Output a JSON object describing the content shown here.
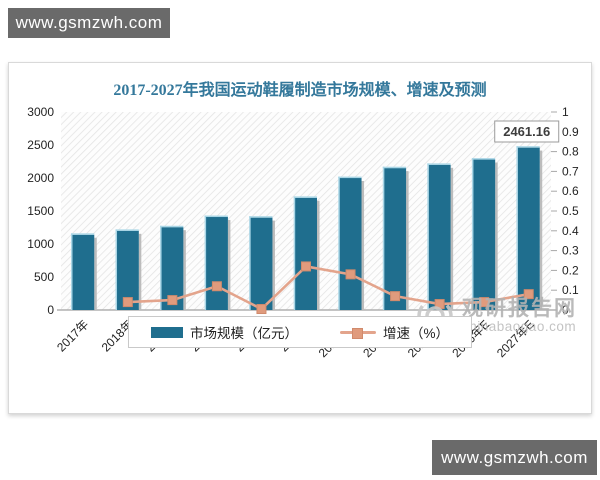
{
  "top_banner": {
    "text": "www.gsmzwh.com"
  },
  "bottom_banner": {
    "text": "www.gsmzwh.com"
  },
  "watermark": {
    "brand": "观研报告网",
    "domain": "chinabaogao.com"
  },
  "chart_data": {
    "type": "combo",
    "title": "2017-2027年我国运动鞋履制造市场规模、增速及预测",
    "categories": [
      "2017年",
      "2018年",
      "2019年",
      "2020年",
      "2021年",
      "2022年",
      "2023年E",
      "2024年E",
      "2025年E",
      "2026年E",
      "2027年E"
    ],
    "series": [
      {
        "name": "市场规模（亿元）",
        "type": "bar",
        "axis": "left",
        "color": "#1f6e8e",
        "values": [
          1140,
          1200,
          1255,
          1410,
          1400,
          1700,
          2000,
          2150,
          2200,
          2280,
          2461.16
        ]
      },
      {
        "name": "增速（%）",
        "type": "line",
        "axis": "right",
        "color": "#e3a48c",
        "marker_color": "#e09b7d",
        "values": [
          null,
          0.04,
          0.05,
          0.12,
          0.005,
          0.22,
          0.18,
          0.07,
          0.03,
          0.04,
          0.08
        ]
      }
    ],
    "left_axis": {
      "min": 0,
      "max": 3000,
      "step": 500,
      "tick_labels": [
        "3000",
        "2500",
        "2000",
        "1500",
        "1000",
        "500",
        "0"
      ]
    },
    "right_axis": {
      "min": 0,
      "max": 1,
      "step": 0.1,
      "tick_labels": [
        "1",
        "0.9",
        "0.8",
        "0.7",
        "0.6",
        "0.5",
        "0.4",
        "0.3",
        "0.2",
        "0.1",
        "0"
      ]
    },
    "annotation": {
      "text": "2461.16",
      "category_index": 10
    },
    "plot_background": "diagonal-hatch",
    "legend_position": "bottom"
  }
}
